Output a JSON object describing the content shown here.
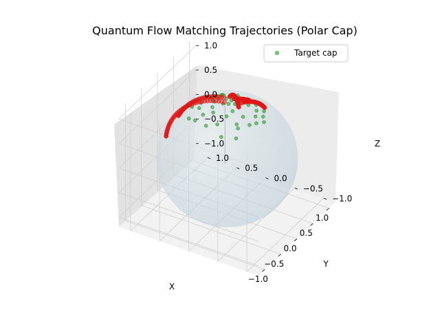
{
  "chart_data": {
    "type": "scatter",
    "projection": "3d",
    "title": "Quantum Flow Matching Trajectories (Polar Cap)",
    "xlabel": "X",
    "ylabel": "Y",
    "zlabel": "Z",
    "xlim": [
      -1.2,
      1.2
    ],
    "ylim": [
      -1.2,
      1.2
    ],
    "zlim": [
      -1.2,
      1.2
    ],
    "xticks": [
      "−1.0",
      "−0.5",
      "0.0",
      "0.5",
      "1.0"
    ],
    "yticks": [
      "−1.0",
      "−0.5",
      "0.0",
      "0.5",
      "1.0"
    ],
    "zticks": [
      "−1.0",
      "−0.5",
      "0.0",
      "0.5",
      "1.0"
    ],
    "grid": true,
    "legend_placement": "upper right",
    "sphere": {
      "radius": 1.0,
      "color": "#b7cbd6"
    },
    "series": [
      {
        "name": "Target cap",
        "color": "#2a9a2a",
        "points": [
          [
            0.05,
            0.1,
            0.99
          ],
          [
            0.15,
            -0.05,
            0.98
          ],
          [
            -0.1,
            0.2,
            0.97
          ],
          [
            0.25,
            0.15,
            0.95
          ],
          [
            -0.2,
            -0.1,
            0.97
          ],
          [
            0.3,
            -0.2,
            0.93
          ],
          [
            0.1,
            0.3,
            0.95
          ],
          [
            -0.3,
            0.25,
            0.92
          ],
          [
            0.4,
            0.05,
            0.91
          ],
          [
            -0.05,
            -0.3,
            0.95
          ],
          [
            0.2,
            0.4,
            0.89
          ],
          [
            -0.4,
            -0.05,
            0.91
          ],
          [
            0.35,
            0.3,
            0.89
          ],
          [
            0.0,
            0.45,
            0.89
          ],
          [
            -0.25,
            -0.3,
            0.92
          ],
          [
            0.45,
            -0.25,
            0.86
          ],
          [
            0.12,
            -0.42,
            0.9
          ],
          [
            -0.42,
            0.32,
            0.85
          ],
          [
            0.28,
            -0.35,
            0.89
          ],
          [
            0.5,
            0.2,
            0.84
          ],
          [
            -0.15,
            0.4,
            0.9
          ],
          [
            0.08,
            0.02,
            1.0
          ],
          [
            -0.05,
            -0.12,
            0.99
          ],
          [
            0.18,
            0.25,
            0.95
          ],
          [
            0.38,
            0.4,
            0.83
          ],
          [
            -0.3,
            -0.35,
            0.89
          ],
          [
            0.55,
            -0.05,
            0.83
          ],
          [
            0.0,
            -0.5,
            0.87
          ],
          [
            -0.48,
            0.1,
            0.87
          ],
          [
            0.22,
            0.05,
            0.97
          ],
          [
            0.42,
            -0.4,
            0.81
          ],
          [
            -0.1,
            0.55,
            0.83
          ],
          [
            0.3,
            0.52,
            0.8
          ],
          [
            -0.38,
            0.45,
            0.81
          ],
          [
            0.6,
            0.15,
            0.79
          ],
          [
            0.15,
            -0.55,
            0.82
          ],
          [
            -0.55,
            -0.2,
            0.81
          ],
          [
            0.05,
            0.25,
            0.97
          ],
          [
            0.48,
            0.35,
            0.8
          ],
          [
            -0.22,
            0.12,
            0.97
          ],
          [
            0.33,
            -0.1,
            0.94
          ],
          [
            -0.12,
            -0.45,
            0.89
          ],
          [
            0.58,
            -0.3,
            0.76
          ],
          [
            0.62,
            0.4,
            0.68
          ],
          [
            0.25,
            -0.48,
            0.84
          ],
          [
            -0.45,
            -0.4,
            0.8
          ]
        ]
      },
      {
        "name": "",
        "color": "#e01818",
        "trajectories": [
          {
            "start": [
              -0.1,
              0.95,
              0.05
            ],
            "end": [
              0.1,
              0.1,
              0.99
            ]
          },
          {
            "start": [
              0.15,
              0.85,
              0.3
            ],
            "end": [
              0.25,
              0.2,
              0.95
            ]
          },
          {
            "start": [
              0.5,
              -0.1,
              0.86
            ],
            "end": [
              0.3,
              0.05,
              0.95
            ]
          },
          {
            "start": [
              0.9,
              0.3,
              0.3
            ],
            "end": [
              0.35,
              0.15,
              0.92
            ]
          },
          {
            "start": [
              0.8,
              -0.2,
              0.56
            ],
            "end": [
              0.25,
              -0.1,
              0.96
            ]
          }
        ]
      }
    ],
    "legend": [
      {
        "label": "Target cap",
        "color": "#2a9a2a"
      }
    ]
  }
}
